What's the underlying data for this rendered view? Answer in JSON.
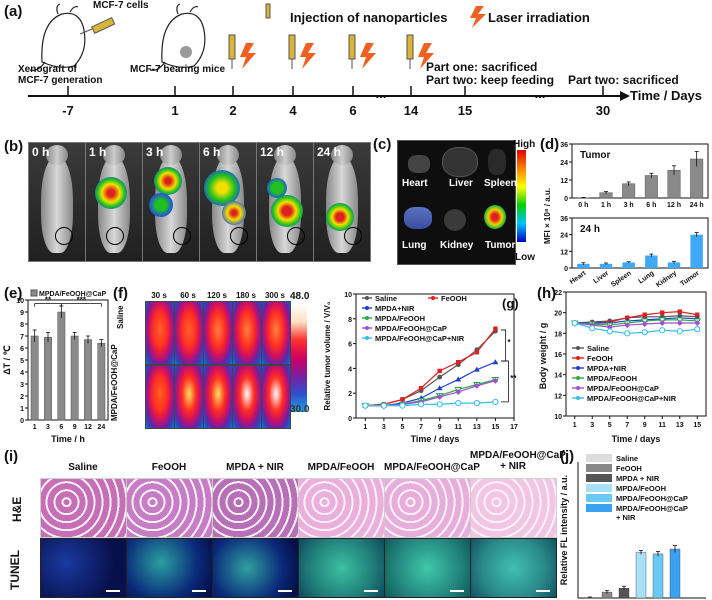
{
  "panel_labels": {
    "a": "(a)",
    "b": "(b)",
    "c": "(c)",
    "d": "(d)",
    "e": "(e)",
    "f": "(f)",
    "g": "(g)",
    "h": "(h)",
    "i": "(i)",
    "j": "(j)"
  },
  "timeline": {
    "ticks": [
      "-7",
      "1",
      "2",
      "4",
      "6",
      "...",
      "14",
      "15",
      "...",
      "30"
    ],
    "axis_label": "Time / Days",
    "texts": {
      "mcf7_cells": "MCF-7 cells",
      "xenograft": "Xenograft of\nMCF-7 generation",
      "bearing": "MCF-7 bearing mice",
      "injection": "Injection of nanoparticles",
      "laser": "Laser irradiation",
      "part1": "Part one: sacrificed",
      "part2_keep": "Part two: keep feeding",
      "part2_sac": "Part two: sacrificed"
    }
  },
  "imaging": {
    "times": [
      "0 h",
      "1 h",
      "3 h",
      "6 h",
      "12 h",
      "24 h"
    ]
  },
  "organs": {
    "labels": [
      "Heart",
      "Liver",
      "Spleen",
      "Lung",
      "Kidney",
      "Tumor"
    ],
    "scale_high": "High",
    "scale_low": "Low"
  },
  "thermal": {
    "times": [
      "30 s",
      "60 s",
      "120 s",
      "180 s",
      "300 s"
    ],
    "rows": [
      "Saline",
      "MPDA/FeOOH@CaP"
    ],
    "scale_max": "48.0",
    "scale_min": "30.0"
  },
  "histology": {
    "columns": [
      "Saline",
      "FeOOH",
      "MPDA + NIR",
      "MPDA/FeOOH",
      "MPDA/FeOOH@CaP",
      "MPDA/FeOOH@CaP\n+ NIR"
    ],
    "rows": [
      "H&E",
      "TUNEL"
    ]
  },
  "colors": {
    "saline": "#555555",
    "feooh": "#e02020",
    "mpda_nir": "#1f3fd0",
    "mpda_feooh": "#2aa84a",
    "caP": "#a050d0",
    "caP_nir": "#30c0e8"
  },
  "chart_data": [
    {
      "panel": "d-top",
      "type": "bar",
      "title": "Tumor",
      "categories": [
        "0 h",
        "1 h",
        "3 h",
        "6 h",
        "12 h",
        "24 h"
      ],
      "values": [
        0.2,
        3.5,
        9.5,
        15,
        18.5,
        26
      ],
      "errors": [
        0.2,
        0.8,
        1.2,
        1.5,
        3,
        5
      ],
      "ylim": [
        0,
        36
      ],
      "yticks": [
        0,
        12,
        24,
        36
      ],
      "ylabel": "MFI × 10⁸ / a.u."
    },
    {
      "panel": "d-bottom",
      "type": "bar",
      "title": "24 h",
      "categories": [
        "Heart",
        "Liver",
        "Spleen",
        "Lung",
        "Kidney",
        "Tumor"
      ],
      "values": [
        3,
        3,
        4,
        9,
        4,
        24
      ],
      "errors": [
        0.8,
        0.6,
        0.5,
        1,
        0.8,
        1.5
      ],
      "ylim": [
        0,
        36
      ],
      "yticks": [
        0,
        12,
        24,
        36
      ]
    },
    {
      "panel": "e",
      "type": "bar",
      "legend": "MPDA/FeOOH@CaP",
      "categories": [
        "1",
        "3",
        "6",
        "9",
        "12",
        "24"
      ],
      "values": [
        7.0,
        6.9,
        9.0,
        7.0,
        6.7,
        6.4
      ],
      "errors": [
        0.5,
        0.4,
        0.5,
        0.3,
        0.3,
        0.3
      ],
      "ylim": [
        0,
        10
      ],
      "yticks": [
        0,
        1,
        2,
        3,
        4,
        5,
        6,
        7,
        8,
        9,
        10
      ],
      "ylabel": "ΔT / ℃",
      "xlabel": "Time / h",
      "significance": [
        "**",
        "***"
      ]
    },
    {
      "panel": "g",
      "type": "line",
      "x": [
        1,
        3,
        5,
        7,
        9,
        11,
        13,
        15
      ],
      "xlim": [
        0,
        17
      ],
      "xticks": [
        1,
        3,
        5,
        7,
        9,
        11,
        13,
        15,
        17
      ],
      "ylim": [
        0,
        10
      ],
      "yticks": [
        0,
        2,
        4,
        6,
        8,
        10
      ],
      "xlabel": "Time / days",
      "ylabel": "Relative tumor volume / V/V₀",
      "significance": [
        "*",
        "**"
      ],
      "series": [
        {
          "name": "Saline",
          "values": [
            1,
            1.1,
            1.5,
            2.2,
            3.3,
            4.3,
            5.5,
            7.0
          ]
        },
        {
          "name": "FeOOH",
          "values": [
            1,
            1.1,
            1.5,
            2.4,
            3.8,
            4.5,
            5.3,
            7.2
          ]
        },
        {
          "name": "MPDA+NIR",
          "values": [
            1,
            1.0,
            1.2,
            1.6,
            2.4,
            3.1,
            3.9,
            4.5
          ]
        },
        {
          "name": "MPDA/FeOOH",
          "values": [
            1,
            1.0,
            1.1,
            1.4,
            1.8,
            2.3,
            2.7,
            3.1
          ]
        },
        {
          "name": "MPDA/FeOOH@CaP",
          "values": [
            1,
            1.0,
            1.1,
            1.3,
            1.7,
            2.1,
            2.6,
            3.0
          ]
        },
        {
          "name": "MPDA/FeOOH@CaP+NIR",
          "values": [
            1,
            1.0,
            1.0,
            1.1,
            1.1,
            1.2,
            1.2,
            1.3
          ]
        }
      ]
    },
    {
      "panel": "h",
      "type": "line",
      "x": [
        1,
        3,
        5,
        7,
        9,
        11,
        13,
        15
      ],
      "xlim": [
        0,
        16
      ],
      "xticks": [
        1,
        3,
        5,
        7,
        9,
        11,
        13,
        15
      ],
      "ylim": [
        10,
        22
      ],
      "yticks": [
        10,
        12,
        14,
        16,
        18,
        20,
        22
      ],
      "xlabel": "Time / days",
      "ylabel": "Body weight / g",
      "series": [
        {
          "name": "Saline",
          "values": [
            19.0,
            19.1,
            19.2,
            19.5,
            19.6,
            19.6,
            19.7,
            19.6
          ]
        },
        {
          "name": "FeOOH",
          "values": [
            19.0,
            19.0,
            19.1,
            19.5,
            19.8,
            20.0,
            20.1,
            19.8
          ]
        },
        {
          "name": "MPDA+NIR",
          "values": [
            19.0,
            19.0,
            19.0,
            19.2,
            19.3,
            19.4,
            19.5,
            19.4
          ]
        },
        {
          "name": "MPDA/FeOOH",
          "values": [
            19.0,
            18.9,
            18.8,
            19.0,
            19.2,
            19.3,
            19.3,
            19.2
          ]
        },
        {
          "name": "MPDA/FeOOH@CaP",
          "values": [
            19.0,
            18.8,
            18.6,
            18.8,
            18.9,
            19.0,
            19.0,
            19.0
          ]
        },
        {
          "name": "MPDA/FeOOH@CaP+NIR",
          "values": [
            19.0,
            18.5,
            18.2,
            18.0,
            18.1,
            18.3,
            18.2,
            18.4
          ]
        }
      ]
    },
    {
      "panel": "j",
      "type": "bar",
      "categories": [
        "Saline",
        "FeOOH",
        "MPDA + NIR",
        "MPDA/FeOOH",
        "MPDA/FeOOH@CaP",
        "MPDA/FeOOH@CaP\n+ NIR"
      ],
      "values": [
        1,
        12,
        20,
        93,
        90,
        100
      ],
      "errors": [
        1,
        3,
        4,
        4,
        5,
        7
      ],
      "ylim": [
        0,
        100
      ],
      "ylabel": "Relative FL intensity / a.u."
    }
  ]
}
